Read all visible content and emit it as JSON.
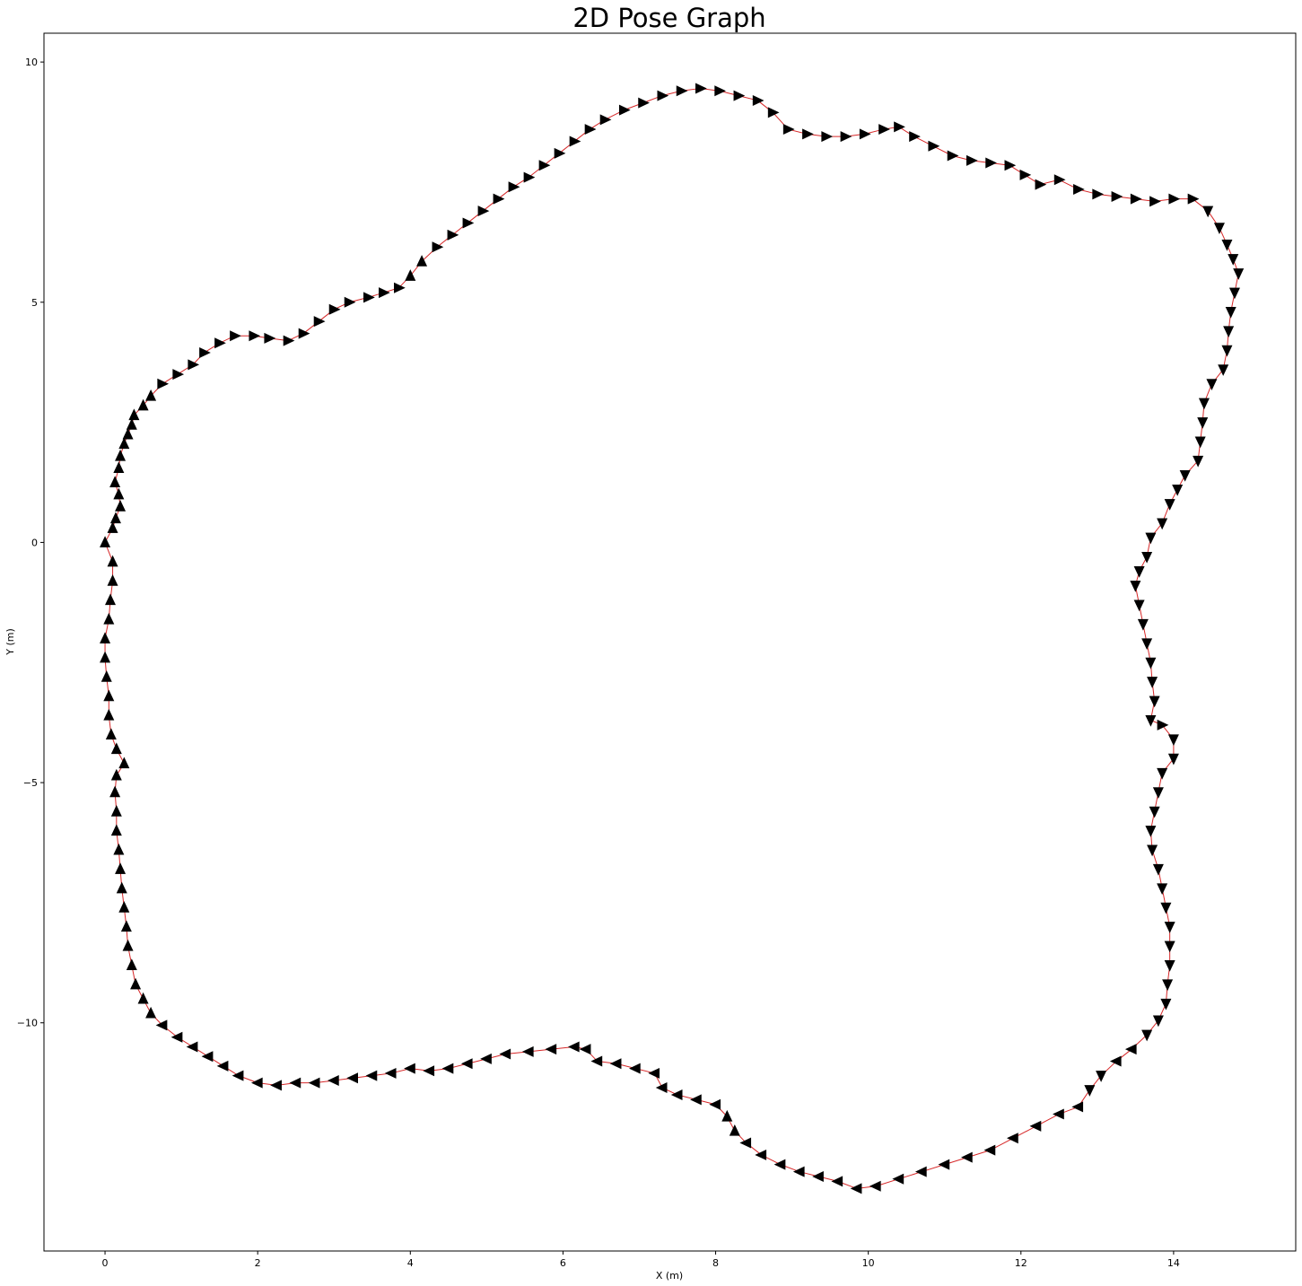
{
  "chart_data": {
    "type": "scatter",
    "title": "2D Pose Graph",
    "xlabel": "X (m)",
    "ylabel": "Y (m)",
    "xlim": [
      -0.8,
      15.6
    ],
    "ylim": [
      -14.75,
      10.6
    ],
    "xticks": [
      0,
      2,
      4,
      6,
      8,
      10,
      12,
      14
    ],
    "yticks": [
      -10,
      -5,
      0,
      5,
      10
    ],
    "grid": false,
    "legend": "none",
    "colors": {
      "marker": "#000000",
      "edge": "#d62728",
      "axes": "#000000"
    },
    "series": [
      {
        "marker": "triangle",
        "points": [
          [
            0.0,
            0.0
          ],
          [
            0.1,
            0.3
          ],
          [
            0.14,
            0.5
          ],
          [
            0.2,
            0.75
          ],
          [
            0.18,
            1.0
          ],
          [
            0.13,
            1.25
          ],
          [
            0.18,
            1.55
          ],
          [
            0.2,
            1.8
          ],
          [
            0.25,
            2.05
          ],
          [
            0.3,
            2.25
          ],
          [
            0.35,
            2.45
          ],
          [
            0.38,
            2.65
          ],
          [
            0.5,
            2.85
          ],
          [
            0.6,
            3.05
          ],
          [
            0.75,
            3.3
          ],
          [
            0.95,
            3.5
          ],
          [
            1.15,
            3.7
          ],
          [
            1.3,
            3.95
          ],
          [
            1.5,
            4.15
          ],
          [
            1.7,
            4.3
          ],
          [
            1.95,
            4.3
          ],
          [
            2.15,
            4.25
          ],
          [
            2.4,
            4.2
          ],
          [
            2.6,
            4.35
          ],
          [
            2.8,
            4.6
          ],
          [
            3.0,
            4.85
          ],
          [
            3.2,
            5.0
          ],
          [
            3.45,
            5.1
          ],
          [
            3.65,
            5.2
          ],
          [
            3.85,
            5.3
          ],
          [
            4.0,
            5.55
          ],
          [
            4.15,
            5.85
          ],
          [
            4.35,
            6.15
          ],
          [
            4.55,
            6.4
          ],
          [
            4.75,
            6.65
          ],
          [
            4.95,
            6.9
          ],
          [
            5.15,
            7.15
          ],
          [
            5.35,
            7.4
          ],
          [
            5.55,
            7.6
          ],
          [
            5.75,
            7.85
          ],
          [
            5.95,
            8.1
          ],
          [
            6.15,
            8.35
          ],
          [
            6.35,
            8.6
          ],
          [
            6.55,
            8.8
          ],
          [
            6.8,
            9.0
          ],
          [
            7.05,
            9.15
          ],
          [
            7.3,
            9.3
          ],
          [
            7.55,
            9.4
          ],
          [
            7.8,
            9.45
          ],
          [
            8.05,
            9.4
          ],
          [
            8.3,
            9.3
          ],
          [
            8.55,
            9.2
          ],
          [
            8.75,
            8.95
          ],
          [
            8.95,
            8.6
          ],
          [
            9.2,
            8.5
          ],
          [
            9.45,
            8.45
          ],
          [
            9.7,
            8.45
          ],
          [
            9.95,
            8.5
          ],
          [
            10.2,
            8.6
          ],
          [
            10.4,
            8.65
          ],
          [
            10.6,
            8.45
          ],
          [
            10.85,
            8.25
          ],
          [
            11.1,
            8.05
          ],
          [
            11.35,
            7.95
          ],
          [
            11.6,
            7.9
          ],
          [
            11.85,
            7.85
          ],
          [
            12.05,
            7.65
          ],
          [
            12.25,
            7.45
          ],
          [
            12.5,
            7.55
          ],
          [
            12.75,
            7.35
          ],
          [
            13.0,
            7.25
          ],
          [
            13.25,
            7.2
          ],
          [
            13.5,
            7.15
          ],
          [
            13.75,
            7.1
          ],
          [
            14.0,
            7.15
          ],
          [
            14.25,
            7.15
          ],
          [
            14.45,
            6.9
          ],
          [
            14.6,
            6.55
          ],
          [
            14.7,
            6.2
          ],
          [
            14.78,
            5.9
          ],
          [
            14.85,
            5.6
          ],
          [
            14.8,
            5.2
          ],
          [
            14.75,
            4.8
          ],
          [
            14.72,
            4.4
          ],
          [
            14.7,
            4.0
          ],
          [
            14.65,
            3.6
          ],
          [
            14.5,
            3.3
          ],
          [
            14.4,
            2.9
          ],
          [
            14.38,
            2.5
          ],
          [
            14.35,
            2.1
          ],
          [
            14.32,
            1.7
          ],
          [
            14.15,
            1.4
          ],
          [
            14.05,
            1.1
          ],
          [
            13.95,
            0.8
          ],
          [
            13.85,
            0.4
          ],
          [
            13.7,
            0.1
          ],
          [
            13.65,
            -0.3
          ],
          [
            13.55,
            -0.6
          ],
          [
            13.5,
            -0.9
          ],
          [
            13.55,
            -1.3
          ],
          [
            13.6,
            -1.7
          ],
          [
            13.65,
            -2.1
          ],
          [
            13.7,
            -2.5
          ],
          [
            13.72,
            -2.9
          ],
          [
            13.75,
            -3.3
          ],
          [
            13.7,
            -3.7
          ],
          [
            13.85,
            -3.8
          ],
          [
            14.0,
            -4.1
          ],
          [
            14.0,
            -4.5
          ],
          [
            13.85,
            -4.8
          ],
          [
            13.8,
            -5.2
          ],
          [
            13.75,
            -5.6
          ],
          [
            13.7,
            -6.0
          ],
          [
            13.72,
            -6.4
          ],
          [
            13.8,
            -6.8
          ],
          [
            13.85,
            -7.2
          ],
          [
            13.9,
            -7.6
          ],
          [
            13.95,
            -8.0
          ],
          [
            13.95,
            -8.4
          ],
          [
            13.95,
            -8.8
          ],
          [
            13.92,
            -9.2
          ],
          [
            13.9,
            -9.6
          ],
          [
            13.8,
            -9.95
          ],
          [
            13.65,
            -10.25
          ],
          [
            13.45,
            -10.55
          ],
          [
            13.25,
            -10.8
          ],
          [
            13.05,
            -11.1
          ],
          [
            12.9,
            -11.4
          ],
          [
            12.75,
            -11.75
          ],
          [
            12.5,
            -11.9
          ],
          [
            12.2,
            -12.15
          ],
          [
            11.9,
            -12.4
          ],
          [
            11.6,
            -12.65
          ],
          [
            11.3,
            -12.8
          ],
          [
            11.0,
            -12.95
          ],
          [
            10.7,
            -13.1
          ],
          [
            10.4,
            -13.25
          ],
          [
            10.1,
            -13.4
          ],
          [
            9.85,
            -13.45
          ],
          [
            9.6,
            -13.3
          ],
          [
            9.35,
            -13.2
          ],
          [
            9.1,
            -13.1
          ],
          [
            8.85,
            -12.95
          ],
          [
            8.6,
            -12.75
          ],
          [
            8.4,
            -12.5
          ],
          [
            8.25,
            -12.25
          ],
          [
            8.15,
            -11.95
          ],
          [
            8.0,
            -11.7
          ],
          [
            7.75,
            -11.6
          ],
          [
            7.5,
            -11.5
          ],
          [
            7.3,
            -11.35
          ],
          [
            7.2,
            -11.05
          ],
          [
            6.95,
            -10.95
          ],
          [
            6.7,
            -10.85
          ],
          [
            6.45,
            -10.8
          ],
          [
            6.3,
            -10.55
          ],
          [
            6.15,
            -10.5
          ],
          [
            5.85,
            -10.55
          ],
          [
            5.55,
            -10.6
          ],
          [
            5.25,
            -10.65
          ],
          [
            5.0,
            -10.75
          ],
          [
            4.75,
            -10.85
          ],
          [
            4.5,
            -10.95
          ],
          [
            4.25,
            -11.0
          ],
          [
            4.0,
            -10.95
          ],
          [
            3.75,
            -11.05
          ],
          [
            3.5,
            -11.1
          ],
          [
            3.25,
            -11.15
          ],
          [
            3.0,
            -11.2
          ],
          [
            2.75,
            -11.25
          ],
          [
            2.5,
            -11.25
          ],
          [
            2.25,
            -11.3
          ],
          [
            2.0,
            -11.25
          ],
          [
            1.75,
            -11.1
          ],
          [
            1.55,
            -10.9
          ],
          [
            1.35,
            -10.7
          ],
          [
            1.15,
            -10.5
          ],
          [
            0.95,
            -10.3
          ],
          [
            0.75,
            -10.05
          ],
          [
            0.6,
            -9.8
          ],
          [
            0.5,
            -9.5
          ],
          [
            0.4,
            -9.2
          ],
          [
            0.35,
            -8.8
          ],
          [
            0.3,
            -8.4
          ],
          [
            0.28,
            -8.0
          ],
          [
            0.25,
            -7.6
          ],
          [
            0.22,
            -7.2
          ],
          [
            0.2,
            -6.8
          ],
          [
            0.18,
            -6.4
          ],
          [
            0.15,
            -6.0
          ],
          [
            0.15,
            -5.6
          ],
          [
            0.13,
            -5.2
          ],
          [
            0.15,
            -4.85
          ],
          [
            0.25,
            -4.6
          ],
          [
            0.15,
            -4.3
          ],
          [
            0.08,
            -4.0
          ],
          [
            0.05,
            -3.6
          ],
          [
            0.05,
            -3.2
          ],
          [
            0.02,
            -2.8
          ],
          [
            0.0,
            -2.4
          ],
          [
            0.0,
            -2.0
          ],
          [
            0.05,
            -1.6
          ],
          [
            0.07,
            -1.2
          ],
          [
            0.1,
            -0.8
          ],
          [
            0.1,
            -0.4
          ]
        ]
      }
    ]
  }
}
